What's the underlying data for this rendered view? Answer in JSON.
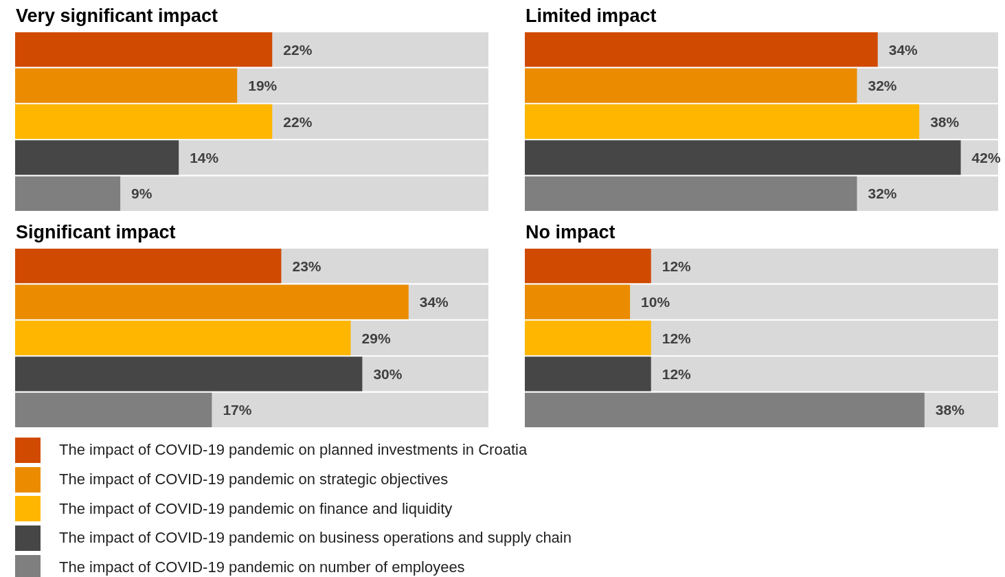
{
  "chart_data": [
    {
      "type": "bar",
      "orientation": "horizontal",
      "title": "Very significant impact",
      "categories": [
        null,
        null,
        null,
        null,
        null
      ],
      "xlim": [
        0,
        40.5
      ],
      "values": [
        22,
        19,
        22,
        14,
        9
      ],
      "value_labels": [
        "22%",
        "19%",
        "22%",
        "14%",
        "9%"
      ],
      "colors": [
        "#d04a02",
        "#eb8c00",
        "#ffb600",
        "#464646",
        "#7f7f7f"
      ]
    },
    {
      "type": "bar",
      "orientation": "horizontal",
      "title": "Limited impact",
      "categories": [
        null,
        null,
        null,
        null,
        null
      ],
      "xlim": [
        0,
        45.6
      ],
      "values": [
        34,
        32,
        38,
        42,
        32
      ],
      "value_labels": [
        "34%",
        "32%",
        "38%",
        "42%",
        "32%"
      ],
      "colors": [
        "#d04a02",
        "#eb8c00",
        "#ffb600",
        "#464646",
        "#7f7f7f"
      ]
    },
    {
      "type": "bar",
      "orientation": "horizontal",
      "title": "Significant impact",
      "categories": [
        null,
        null,
        null,
        null,
        null
      ],
      "xlim": [
        0,
        40.9
      ],
      "values": [
        23,
        34,
        29,
        30,
        17
      ],
      "value_labels": [
        "23%",
        "34%",
        "29%",
        "30%",
        "17%"
      ],
      "colors": [
        "#d04a02",
        "#eb8c00",
        "#ffb600",
        "#464646",
        "#7f7f7f"
      ]
    },
    {
      "type": "bar",
      "orientation": "horizontal",
      "title": "No impact",
      "categories": [
        null,
        null,
        null,
        null,
        null
      ],
      "xlim": [
        0,
        45
      ],
      "values": [
        12,
        10,
        12,
        12,
        38
      ],
      "value_labels": [
        "12%",
        "10%",
        "12%",
        "12%",
        "38%"
      ],
      "colors": [
        "#d04a02",
        "#eb8c00",
        "#ffb600",
        "#464646",
        "#7f7f7f"
      ]
    },
    {
      "type": "other",
      "categories": [
        "The impact of COVID-19 pandemic on planned investments in Croatia",
        "The impact of COVID-19 pandemic on strategic objectives",
        "The impact of COVID-19 pandemic on finance and liquidity",
        "The impact of COVID-19 pandemic on business operations and supply chain",
        "The impact of COVID-19 pandemic on number of employees"
      ],
      "colors": [
        "#d04a02",
        "#eb8c00",
        "#ffb600",
        "#464646",
        "#7f7f7f"
      ]
    }
  ]
}
